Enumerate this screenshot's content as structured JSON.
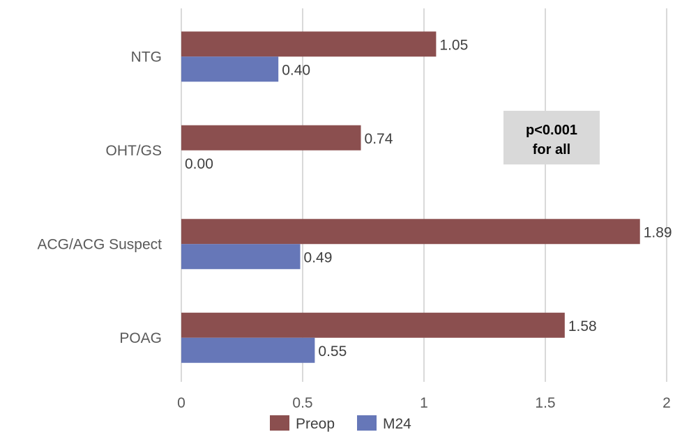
{
  "chart_data": {
    "type": "bar",
    "orientation": "horizontal",
    "categories": [
      "NTG",
      "OHT/GS",
      "ACG/ACG Suspect",
      "POAG"
    ],
    "series": [
      {
        "name": "Preop",
        "values": [
          1.05,
          0.74,
          1.89,
          1.58
        ],
        "labels": [
          "1.05",
          "0.74",
          "1.89",
          "1.58"
        ],
        "color": "#8B4F4F"
      },
      {
        "name": "M24",
        "values": [
          0.4,
          0.0,
          0.49,
          0.55
        ],
        "labels": [
          "0.40",
          "0.00",
          "0.49",
          "0.55"
        ],
        "color": "#6677B8"
      }
    ],
    "xlim": [
      0,
      2
    ],
    "xticks": [
      0,
      0.5,
      1,
      1.5,
      2
    ],
    "xtick_labels": [
      "0",
      "0.5",
      "1",
      "1.5",
      "2"
    ],
    "grid": "vertical",
    "legend": "bottom",
    "annotation": {
      "lines": [
        "p<0.001",
        "for all"
      ],
      "background": "#D9D9D9"
    },
    "gridline_color": "#D9D9D9"
  }
}
